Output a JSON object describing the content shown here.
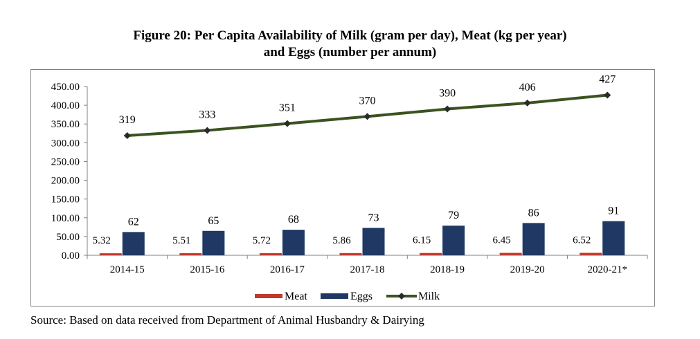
{
  "figure": {
    "title_line1": "Figure 20: Per Capita Availability of Milk (gram per day), Meat (kg per year)",
    "title_line2": "and Eggs (number per annum)",
    "source": "Source: Based on data received from Department of Animal Husbandry & Dairying"
  },
  "colors": {
    "meat": "#c0392b",
    "eggs": "#1f3864",
    "milk": "#3b5320",
    "milk_marker": "#2a2a2a",
    "axis": "#808080"
  },
  "chart_data": {
    "type": "bar",
    "title": "Figure 20: Per Capita Availability of Milk (gram per day), Meat (kg per year) and Eggs (number per annum)",
    "categories": [
      "2014-15",
      "2015-16",
      "2016-17",
      "2017-18",
      "2018-19",
      "2019-20",
      "2020-21*"
    ],
    "ylim": [
      0,
      450
    ],
    "yticks": [
      "0.00",
      "50.00",
      "100.00",
      "150.00",
      "200.00",
      "250.00",
      "300.00",
      "350.00",
      "400.00",
      "450.00"
    ],
    "ytick_values": [
      0,
      50,
      100,
      150,
      200,
      250,
      300,
      350,
      400,
      450
    ],
    "grid": false,
    "legend": "bottom-center",
    "series": [
      {
        "name": "Meat",
        "kind": "bar",
        "values": [
          5.32,
          5.51,
          5.72,
          5.86,
          6.15,
          6.45,
          6.52
        ],
        "labels": [
          "5.32",
          "5.51",
          "5.72",
          "5.86",
          "6.15",
          "6.45",
          "6.52"
        ]
      },
      {
        "name": "Eggs",
        "kind": "bar",
        "values": [
          62,
          65,
          68,
          73,
          79,
          86,
          91
        ],
        "labels": [
          "62",
          "65",
          "68",
          "73",
          "79",
          "86",
          "91"
        ]
      },
      {
        "name": "Milk",
        "kind": "line",
        "values": [
          319,
          333,
          351,
          370,
          390,
          406,
          427
        ],
        "labels": [
          "319",
          "333",
          "351",
          "370",
          "390",
          "406",
          "427"
        ]
      }
    ]
  }
}
